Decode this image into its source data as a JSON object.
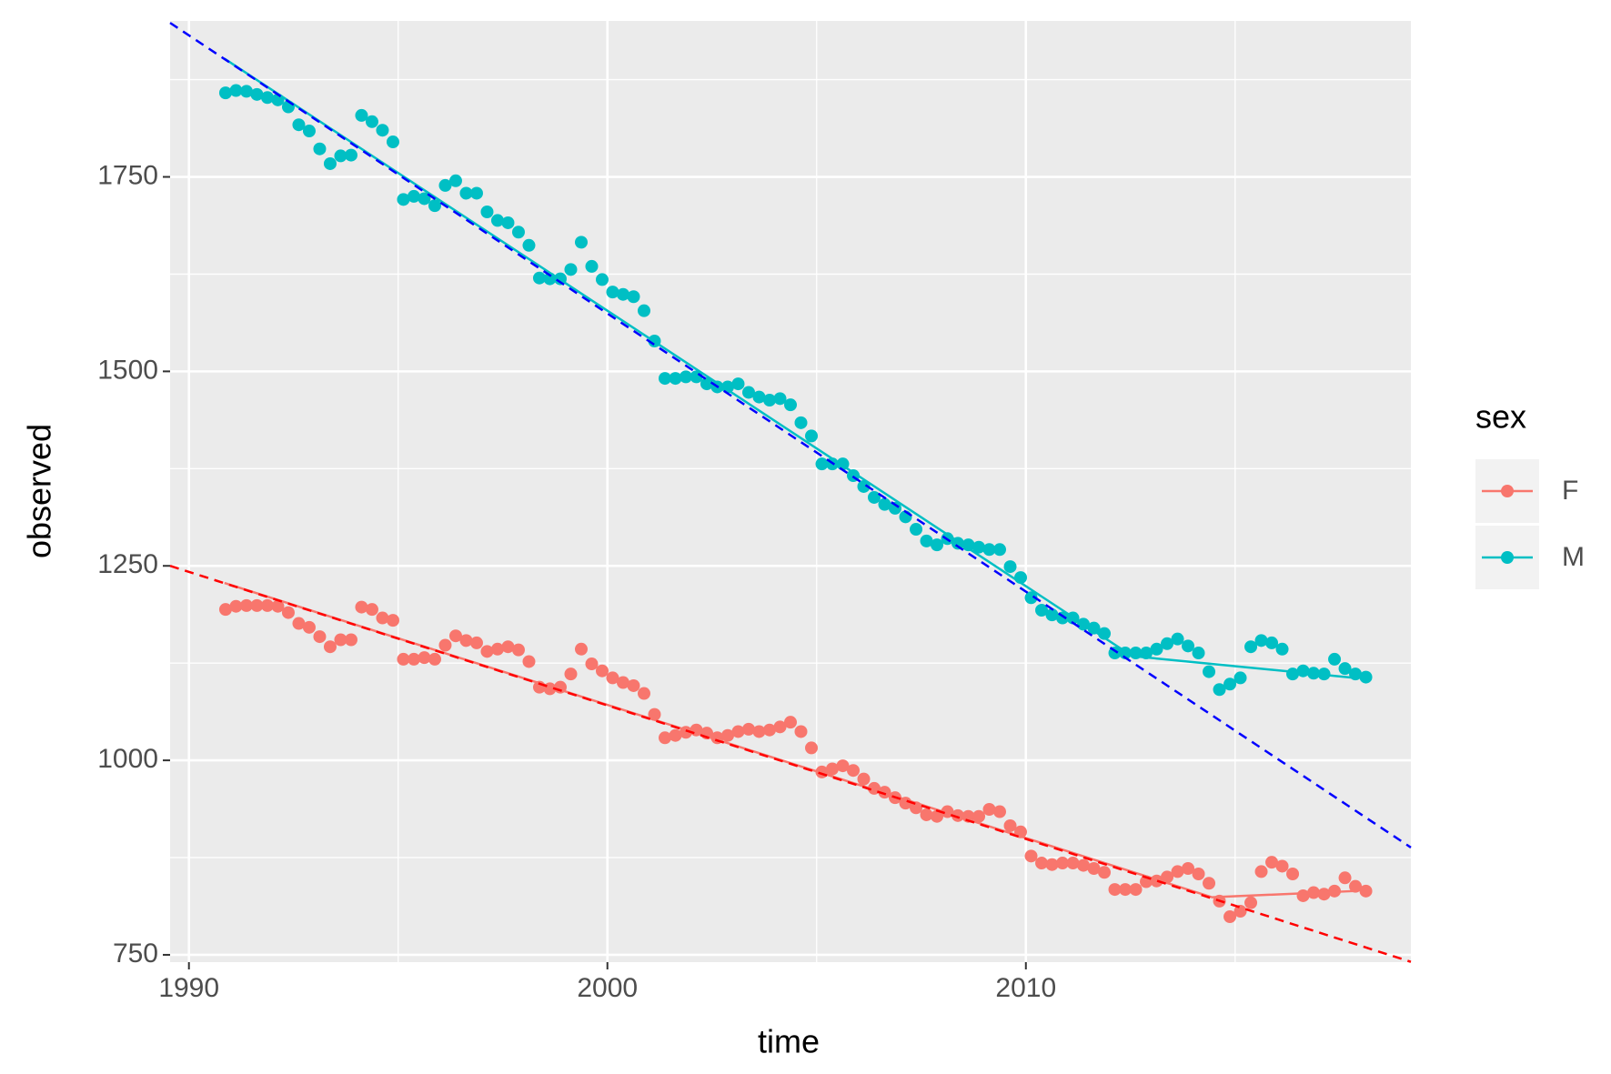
{
  "chart_data": {
    "type": "line",
    "x_label": "time",
    "y_label": "observed",
    "legend_title": "sex",
    "legend_position": "right",
    "xlim": [
      1989.55,
      2019.2
    ],
    "ylim": [
      740.6,
      1950.5
    ],
    "xticks": [
      1990,
      2000,
      2010
    ],
    "yticks": [
      750,
      1000,
      1250,
      1500,
      1750
    ],
    "xminor": [
      1995,
      2005,
      2015
    ],
    "yminor": [
      875,
      1125,
      1375,
      1625,
      1875
    ],
    "grid": true,
    "x": [
      1990.875,
      1991.125,
      1991.375,
      1991.625,
      1991.875,
      1992.125,
      1992.375,
      1992.625,
      1992.875,
      1993.125,
      1993.375,
      1993.625,
      1993.875,
      1994.125,
      1994.375,
      1994.625,
      1994.875,
      1995.125,
      1995.375,
      1995.625,
      1995.875,
      1996.125,
      1996.375,
      1996.625,
      1996.875,
      1997.125,
      1997.375,
      1997.625,
      1997.875,
      1998.125,
      1998.375,
      1998.625,
      1998.875,
      1999.125,
      1999.375,
      1999.625,
      1999.875,
      2000.125,
      2000.375,
      2000.625,
      2000.875,
      2001.125,
      2001.375,
      2001.625,
      2001.875,
      2002.125,
      2002.375,
      2002.625,
      2002.875,
      2003.125,
      2003.375,
      2003.625,
      2003.875,
      2004.125,
      2004.375,
      2004.625,
      2004.875,
      2005.125,
      2005.375,
      2005.625,
      2005.875,
      2006.125,
      2006.375,
      2006.625,
      2006.875,
      2007.125,
      2007.375,
      2007.625,
      2007.875,
      2008.125,
      2008.375,
      2008.625,
      2008.875,
      2009.125,
      2009.375,
      2009.625,
      2009.875,
      2010.125,
      2010.375,
      2010.625,
      2010.875,
      2011.125,
      2011.375,
      2011.625,
      2011.875,
      2012.125,
      2012.375,
      2012.625,
      2012.875,
      2013.125,
      2013.375,
      2013.625,
      2013.875,
      2014.125,
      2014.375,
      2014.625,
      2014.875,
      2015.125,
      2015.375,
      2015.625,
      2015.875,
      2016.125,
      2016.375,
      2016.625,
      2016.875,
      2017.125,
      2017.375,
      2017.625,
      2017.875,
      2018.125
    ],
    "series": [
      {
        "name": "F",
        "color": "#F8766D",
        "values": [
          1194,
          1198,
          1199,
          1199,
          1199,
          1198,
          1190,
          1176,
          1171,
          1159,
          1146,
          1155,
          1155,
          1197,
          1194,
          1183,
          1180,
          1130,
          1130,
          1132,
          1130,
          1148,
          1160,
          1154,
          1151,
          1140,
          1143,
          1146,
          1142,
          1127,
          1094,
          1092,
          1094,
          1111,
          1143,
          1124,
          1115,
          1106,
          1100,
          1096,
          1086,
          1059,
          1029,
          1032,
          1036,
          1039,
          1035,
          1029,
          1032,
          1037,
          1040,
          1037,
          1039,
          1043,
          1049,
          1037,
          1016,
          985,
          989,
          993,
          987,
          976,
          964,
          959,
          952,
          945,
          939,
          930,
          928,
          934,
          929,
          928,
          928,
          937,
          934,
          916,
          908,
          877,
          868,
          866,
          868,
          868,
          865,
          861,
          856,
          834,
          834,
          834,
          844,
          845,
          850,
          857,
          861,
          854,
          842,
          819,
          799,
          806,
          817,
          857,
          869,
          864,
          854,
          826,
          830,
          828,
          832,
          849,
          838,
          832
        ],
        "fit_x": [
          1990.85,
          2014.45,
          2017.85
        ],
        "fit_values": [
          1228,
          824,
          832
        ]
      },
      {
        "name": "M",
        "color": "#00BFC4",
        "values": [
          1858,
          1861,
          1860,
          1856,
          1852,
          1849,
          1840,
          1817,
          1809,
          1786,
          1767,
          1777,
          1778,
          1829,
          1821,
          1810,
          1795,
          1721,
          1725,
          1722,
          1713,
          1739,
          1745,
          1729,
          1729,
          1705,
          1694,
          1691,
          1679,
          1662,
          1620,
          1619,
          1619,
          1631,
          1666,
          1635,
          1618,
          1602,
          1599,
          1596,
          1578,
          1539,
          1491,
          1491,
          1493,
          1493,
          1484,
          1480,
          1480,
          1484,
          1473,
          1467,
          1463,
          1465,
          1457,
          1434,
          1417,
          1381,
          1381,
          1381,
          1366,
          1352,
          1338,
          1329,
          1324,
          1313,
          1297,
          1282,
          1277,
          1285,
          1279,
          1277,
          1274,
          1271,
          1271,
          1249,
          1235,
          1209,
          1193,
          1187,
          1183,
          1183,
          1175,
          1170,
          1163,
          1138,
          1138,
          1138,
          1138,
          1143,
          1150,
          1156,
          1147,
          1138,
          1114,
          1091,
          1098,
          1106,
          1146,
          1154,
          1151,
          1143,
          1111,
          1115,
          1112,
          1111,
          1130,
          1118,
          1111,
          1107
        ],
        "fit_x": [
          1990.85,
          2012.54,
          2017.85
        ],
        "fit_values": [
          1902,
          1134,
          1106
        ]
      }
    ],
    "trend_lines": [
      {
        "color": "#ff0000",
        "x": [
          1989.55,
          2019.2
        ],
        "values": [
          1250,
          741
        ]
      },
      {
        "color": "#0000ff",
        "x": [
          1989.55,
          2019.2
        ],
        "values": [
          1948,
          888
        ]
      }
    ]
  }
}
